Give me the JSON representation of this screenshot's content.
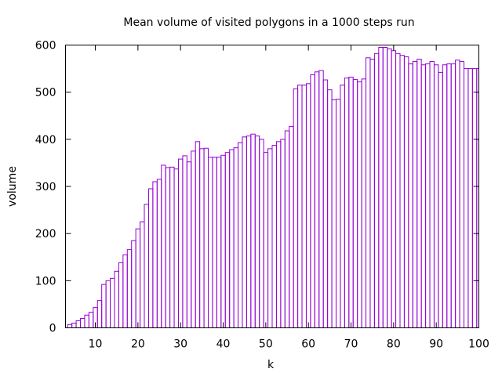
{
  "chart_data": {
    "type": "bar",
    "title": "Mean volume of visited polygons in a 1000 steps run",
    "xlabel": "k",
    "ylabel": "volume",
    "xlim": [
      3,
      100
    ],
    "ylim": [
      0,
      600
    ],
    "xticks": [
      10,
      20,
      30,
      40,
      50,
      60,
      70,
      80,
      90,
      100
    ],
    "yticks": [
      0,
      100,
      200,
      300,
      400,
      500,
      600
    ],
    "grid": false,
    "legend": "none",
    "bar_color": "#9400d3",
    "x": [
      4,
      5,
      6,
      7,
      8,
      9,
      10,
      11,
      12,
      13,
      14,
      15,
      16,
      17,
      18,
      19,
      20,
      21,
      22,
      23,
      24,
      25,
      26,
      27,
      28,
      29,
      30,
      31,
      32,
      33,
      34,
      35,
      36,
      37,
      38,
      39,
      40,
      41,
      42,
      43,
      44,
      45,
      46,
      47,
      48,
      49,
      50,
      51,
      52,
      53,
      54,
      55,
      56,
      57,
      58,
      59,
      60,
      61,
      62,
      63,
      64,
      65,
      66,
      67,
      68,
      69,
      70,
      71,
      72,
      73,
      74,
      75,
      76,
      77,
      78,
      79,
      80,
      81,
      82,
      83,
      84,
      85,
      86,
      87,
      88,
      89,
      90,
      91,
      92,
      93,
      94,
      95,
      96,
      97,
      98,
      99,
      100
    ],
    "values": [
      7,
      10,
      15,
      20,
      27,
      33,
      43,
      58,
      92,
      100,
      105,
      120,
      138,
      155,
      166,
      185,
      210,
      225,
      262,
      295,
      310,
      315,
      345,
      340,
      341,
      337,
      358,
      365,
      352,
      375,
      395,
      380,
      381,
      362,
      362,
      362,
      366,
      372,
      378,
      382,
      393,
      405,
      407,
      411,
      407,
      400,
      372,
      380,
      387,
      395,
      400,
      418,
      427,
      507,
      515,
      515,
      518,
      537,
      543,
      546,
      526,
      505,
      484,
      485,
      515,
      530,
      532,
      527,
      522,
      528,
      573,
      570,
      582,
      595,
      595,
      592,
      588,
      582,
      578,
      575,
      560,
      565,
      570,
      558,
      560,
      565,
      558,
      542,
      558,
      560,
      560,
      568,
      565,
      550,
      550,
      550,
      550
    ]
  }
}
